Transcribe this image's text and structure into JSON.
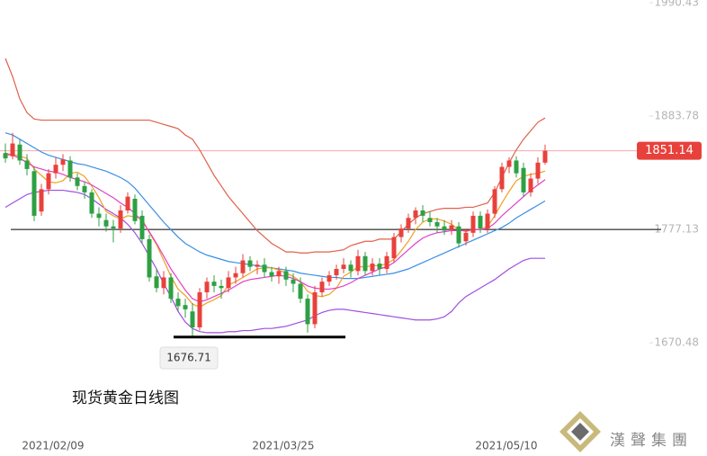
{
  "chart_data": {
    "type": "candlestick",
    "title": "现货黄金日线图",
    "brand": "漢聲集團",
    "categories": [
      null,
      null,
      null,
      null,
      null,
      null,
      null,
      "2021/02/09",
      null,
      null,
      null,
      null,
      null,
      null,
      null,
      null,
      null,
      null,
      null,
      null,
      null,
      null,
      null,
      null,
      null,
      null,
      null,
      null,
      null,
      null,
      null,
      null,
      null,
      null,
      null,
      null,
      null,
      null,
      null,
      "2021/03/25",
      null,
      null,
      null,
      null,
      null,
      null,
      null,
      null,
      null,
      null,
      null,
      null,
      null,
      null,
      null,
      null,
      null,
      null,
      null,
      null,
      null,
      null,
      null,
      null,
      null,
      null,
      null,
      null,
      null,
      null,
      "2021/05/10",
      null,
      null,
      null,
      null,
      null
    ],
    "open": [
      1849,
      1846,
      1857,
      1842,
      1832,
      1794,
      1815,
      1830,
      1838,
      1842,
      1826,
      1818,
      1812,
      1792,
      1786,
      1780,
      1778,
      1795,
      1806,
      1790,
      1768,
      1733,
      1722,
      1732,
      1712,
      1706,
      1700,
      1685,
      1718,
      1728,
      1724,
      1722,
      1732,
      1736,
      1748,
      1742,
      1744,
      1737,
      1733,
      1738,
      1730,
      1726,
      1712,
      1688,
      1718,
      1728,
      1734,
      1740,
      1744,
      1738,
      1752,
      1738,
      1745,
      1740,
      1750,
      1770,
      1778,
      1788,
      1795,
      1788,
      1784,
      1780,
      1777,
      1780,
      1766,
      1774,
      1790,
      1778,
      1792,
      1815,
      1836,
      1842,
      1835,
      1812,
      1825,
      1840
    ],
    "high": [
      1858,
      1868,
      1862,
      1848,
      1836,
      1820,
      1834,
      1845,
      1848,
      1846,
      1830,
      1822,
      1815,
      1798,
      1792,
      1786,
      1800,
      1812,
      1810,
      1795,
      1772,
      1740,
      1738,
      1736,
      1718,
      1712,
      1708,
      1722,
      1732,
      1734,
      1730,
      1738,
      1742,
      1754,
      1752,
      1748,
      1750,
      1742,
      1742,
      1742,
      1736,
      1732,
      1716,
      1724,
      1732,
      1738,
      1744,
      1750,
      1748,
      1758,
      1756,
      1750,
      1750,
      1756,
      1774,
      1782,
      1792,
      1798,
      1800,
      1794,
      1788,
      1786,
      1786,
      1784,
      1778,
      1794,
      1794,
      1796,
      1818,
      1840,
      1845,
      1846,
      1840,
      1830,
      1845,
      1857
    ],
    "low": [
      1840,
      1843,
      1838,
      1828,
      1785,
      1790,
      1810,
      1825,
      1832,
      1822,
      1814,
      1806,
      1788,
      1780,
      1775,
      1765,
      1774,
      1792,
      1782,
      1764,
      1728,
      1718,
      1716,
      1708,
      1700,
      1694,
      1676.71,
      1682,
      1712,
      1718,
      1712,
      1718,
      1726,
      1732,
      1738,
      1735,
      1732,
      1728,
      1726,
      1724,
      1718,
      1708,
      1680,
      1684,
      1714,
      1724,
      1730,
      1736,
      1732,
      1734,
      1734,
      1734,
      1734,
      1736,
      1746,
      1765,
      1774,
      1782,
      1784,
      1780,
      1774,
      1772,
      1772,
      1760,
      1762,
      1770,
      1774,
      1774,
      1788,
      1812,
      1830,
      1826,
      1808,
      1808,
      1820,
      1838
    ],
    "close": [
      1844,
      1858,
      1842,
      1834,
      1790,
      1815,
      1830,
      1838,
      1843,
      1826,
      1818,
      1812,
      1792,
      1788,
      1780,
      1778,
      1795,
      1808,
      1785,
      1768,
      1732,
      1722,
      1732,
      1712,
      1705,
      1702,
      1685,
      1718,
      1728,
      1724,
      1722,
      1732,
      1736,
      1748,
      1742,
      1744,
      1737,
      1733,
      1738,
      1730,
      1726,
      1712,
      1688,
      1718,
      1728,
      1734,
      1740,
      1744,
      1738,
      1752,
      1738,
      1745,
      1740,
      1752,
      1770,
      1778,
      1788,
      1795,
      1790,
      1784,
      1780,
      1776,
      1781,
      1764,
      1774,
      1790,
      1778,
      1792,
      1815,
      1836,
      1842,
      1830,
      1812,
      1825,
      1840,
      1851.14
    ],
    "up_color": "#e8413c",
    "down_color": "#2ea043",
    "lines": [
      {
        "color": "#e0604c",
        "values": [
          1938,
          1921,
          1900,
          1887,
          1881,
          1880,
          1880,
          1880,
          1880,
          1880,
          1880,
          1880,
          1880,
          1880,
          1880,
          1880,
          1880,
          1880,
          1880,
          1880,
          1880,
          1878,
          1876,
          1874,
          1872,
          1866,
          1862,
          1852,
          1840,
          1828,
          1818,
          1808,
          1800,
          1792,
          1784,
          1776,
          1770,
          1764,
          1760,
          1756,
          1756,
          1755,
          1755,
          1756,
          1756,
          1756,
          1757,
          1758,
          1762,
          1764,
          1766,
          1766,
          1768,
          1768,
          1768,
          1775,
          1782,
          1788,
          1792,
          1794,
          1796,
          1797,
          1797,
          1797,
          1798,
          1798,
          1800,
          1802,
          1812,
          1826,
          1840,
          1852,
          1862,
          1870,
          1878,
          1882
        ]
      },
      {
        "color": "#a04ee0",
        "values": [
          1798,
          1802,
          1806,
          1810,
          1812,
          1813,
          1814,
          1814,
          1814,
          1813,
          1812,
          1810,
          1806,
          1801,
          1796,
          1792,
          1788,
          1782,
          1774,
          1764,
          1752,
          1740,
          1726,
          1714,
          1700,
          1690,
          1684,
          1681,
          1680,
          1680,
          1680,
          1681,
          1681,
          1682,
          1682,
          1683,
          1684,
          1684,
          1685,
          1686,
          1688,
          1690,
          1692,
          1696,
          1699,
          1701,
          1702,
          1702,
          1701,
          1700,
          1699,
          1698,
          1697,
          1696,
          1695,
          1694,
          1693,
          1692,
          1692,
          1692,
          1693,
          1695,
          1700,
          1708,
          1714,
          1718,
          1722,
          1726,
          1730,
          1735,
          1740,
          1744,
          1748,
          1750,
          1750,
          1750
        ]
      },
      {
        "color": "#3a8ee6",
        "values": [
          1868,
          1866,
          1862,
          1858,
          1854,
          1850,
          1847,
          1845,
          1843,
          1841,
          1839,
          1838,
          1836,
          1834,
          1832,
          1829,
          1826,
          1822,
          1816,
          1808,
          1800,
          1792,
          1784,
          1777,
          1770,
          1764,
          1760,
          1756,
          1753,
          1751,
          1749,
          1747,
          1746,
          1745,
          1744,
          1743,
          1742,
          1741,
          1740,
          1739,
          1738,
          1736,
          1735,
          1734,
          1733,
          1732,
          1732,
          1731,
          1731,
          1731,
          1732,
          1733,
          1734,
          1735,
          1736,
          1738,
          1740,
          1743,
          1746,
          1749,
          1752,
          1755,
          1758,
          1761,
          1764,
          1767,
          1770,
          1773,
          1776,
          1779,
          1783,
          1788,
          1792,
          1796,
          1800,
          1804
        ]
      },
      {
        "color": "#f0a020",
        "values": [
          1846,
          1848,
          1846,
          1844,
          1834,
          1828,
          1822,
          1821,
          1823,
          1830,
          1831,
          1827,
          1818,
          1807,
          1794,
          1790,
          1787,
          1790,
          1789,
          1787,
          1774,
          1763,
          1748,
          1733,
          1721,
          1715,
          1707,
          1704,
          1708,
          1711,
          1715,
          1725,
          1728,
          1732,
          1736,
          1740,
          1741,
          1741,
          1739,
          1736,
          1733,
          1728,
          1719,
          1715,
          1714,
          1716,
          1722,
          1733,
          1737,
          1742,
          1742,
          1743,
          1743,
          1745,
          1749,
          1757,
          1766,
          1777,
          1784,
          1787,
          1787,
          1785,
          1782,
          1777,
          1775,
          1777,
          1777,
          1780,
          1790,
          1802,
          1813,
          1823,
          1827,
          1829,
          1830,
          1832
        ]
      },
      {
        "color": "#e040c8",
        "values": [
          1849,
          1847,
          1844,
          1840,
          1836,
          1834,
          1832,
          1831,
          1829,
          1826,
          1824,
          1822,
          1819,
          1815,
          1811,
          1807,
          1802,
          1798,
          1792,
          1785,
          1775,
          1764,
          1752,
          1740,
          1730,
          1720,
          1712,
          1709,
          1711,
          1714,
          1717,
          1720,
          1724,
          1728,
          1730,
          1731,
          1732,
          1733,
          1734,
          1733,
          1731,
          1728,
          1724,
          1722,
          1721,
          1721,
          1722,
          1724,
          1727,
          1731,
          1734,
          1737,
          1740,
          1742,
          1746,
          1752,
          1758,
          1764,
          1769,
          1772,
          1774,
          1775,
          1776,
          1776,
          1776,
          1777,
          1777,
          1778,
          1783,
          1790,
          1796,
          1802,
          1808,
          1814,
          1819,
          1824
        ]
      }
    ],
    "ylim": [
      1564,
      1993
    ],
    "yticks": [
      1990.43,
      1883.78,
      1777.13,
      1670.48
    ],
    "hline": {
      "value": 1777.13,
      "color": "#000000"
    },
    "last_price": {
      "value": 1851.14,
      "color": "#e8413c"
    },
    "low_label": {
      "value": 1676.71
    }
  }
}
